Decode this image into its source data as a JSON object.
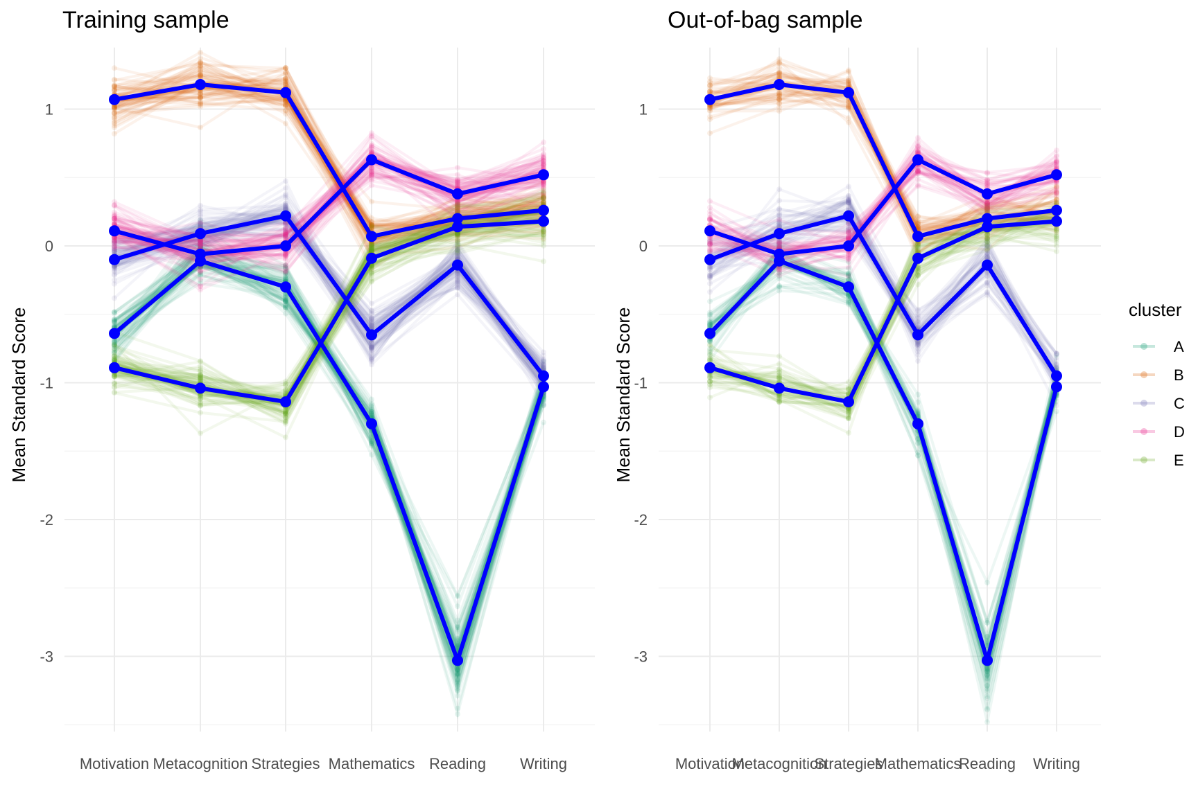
{
  "colors": {
    "A": "#1b9e77",
    "B": "#d95f02",
    "C": "#7570b3",
    "D": "#e7298a",
    "E": "#66a61e",
    "mean": "#0000ff",
    "grid_major": "#ebebeb",
    "grid_minor": "#f5f5f5"
  },
  "legend": {
    "title": "cluster",
    "items": [
      {
        "key": "A",
        "label": "A"
      },
      {
        "key": "B",
        "label": "B"
      },
      {
        "key": "C",
        "label": "C"
      },
      {
        "key": "D",
        "label": "D"
      },
      {
        "key": "E",
        "label": "E"
      }
    ]
  },
  "chart_data": [
    {
      "type": "line",
      "title": "Training sample",
      "xlabel": "",
      "ylabel": "Mean Standard Score",
      "categories": [
        "Motivation",
        "Metacognition",
        "Strategies",
        "Mathematics",
        "Reading",
        "Writing"
      ],
      "ylim": [
        -3.55,
        1.45
      ],
      "yticks": [
        1,
        0,
        -1,
        -2,
        -3
      ],
      "series": [
        {
          "name": "A",
          "values": [
            -0.64,
            -0.11,
            -0.3,
            -1.3,
            -3.03,
            -1.03
          ]
        },
        {
          "name": "B",
          "values": [
            1.07,
            1.18,
            1.12,
            0.07,
            0.2,
            0.26
          ]
        },
        {
          "name": "C",
          "values": [
            -0.1,
            0.09,
            0.22,
            -0.65,
            -0.14,
            -0.95
          ]
        },
        {
          "name": "D",
          "values": [
            0.11,
            -0.06,
            0.0,
            0.63,
            0.38,
            0.52
          ]
        },
        {
          "name": "E",
          "values": [
            -0.89,
            -1.04,
            -1.14,
            -0.09,
            0.14,
            0.18
          ]
        }
      ]
    },
    {
      "type": "line",
      "title": "Out-of-bag sample",
      "xlabel": "",
      "ylabel": "Mean Standard Score",
      "categories": [
        "Motivation",
        "Metacognition",
        "Strategies",
        "Mathematics",
        "Reading",
        "Writing"
      ],
      "ylim": [
        -3.55,
        1.45
      ],
      "yticks": [
        1,
        0,
        -1,
        -2,
        -3
      ],
      "series": [
        {
          "name": "A",
          "values": [
            -0.64,
            -0.11,
            -0.3,
            -1.3,
            -3.03,
            -1.03
          ]
        },
        {
          "name": "B",
          "values": [
            1.07,
            1.18,
            1.12,
            0.07,
            0.2,
            0.26
          ]
        },
        {
          "name": "C",
          "values": [
            -0.1,
            0.09,
            0.22,
            -0.65,
            -0.14,
            -0.95
          ]
        },
        {
          "name": "D",
          "values": [
            0.11,
            -0.06,
            0.0,
            0.63,
            0.38,
            0.52
          ]
        },
        {
          "name": "E",
          "values": [
            -0.89,
            -1.04,
            -1.14,
            -0.09,
            0.14,
            0.18
          ]
        }
      ]
    }
  ]
}
